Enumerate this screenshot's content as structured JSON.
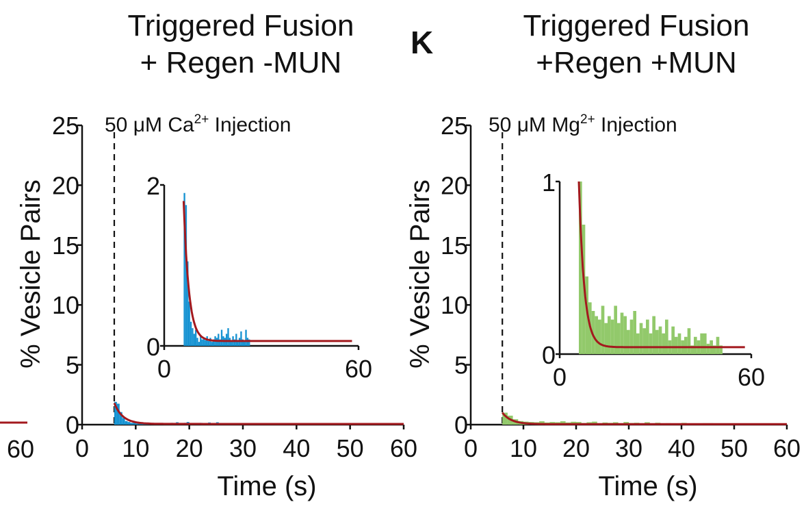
{
  "colors": {
    "blue_bars": "#1793d2",
    "green_bars": "#92c96b",
    "fit_line": "#a3191e",
    "axis": "#111111"
  },
  "fragment": {
    "tick_label": "60"
  },
  "panel_k": {
    "letter": "K"
  },
  "chart_data": [
    {
      "id": "left",
      "type": "bar",
      "title": [
        "Triggered Fusion",
        "+ Regen -MUN"
      ],
      "annotation": {
        "prefix": "50 μM Ca",
        "superscript": "2+",
        "suffix": " Injection"
      },
      "injection_time": 6,
      "xlabel": "Time (s)",
      "ylabel": "% Vesicle Pairs",
      "xlim": [
        0,
        60
      ],
      "ylim": [
        0,
        25
      ],
      "xticks": [
        "0",
        "10",
        "20",
        "30",
        "40",
        "50",
        "60"
      ],
      "yticks": [
        "0",
        "5",
        "10",
        "15",
        "20",
        "25"
      ],
      "bar_color": "#1793d2",
      "bin_width": 0.5,
      "bar_start": 6,
      "values": [
        1.9,
        1.75,
        1.05,
        0.55,
        0.3,
        0.22,
        0.15,
        0.2,
        0.1,
        0.05,
        0.12,
        0.08,
        0.1,
        0.07,
        0.12,
        0.06,
        0.1,
        0.05,
        0.08,
        0.12,
        0.1,
        0.15,
        0.08,
        0.2,
        0.12,
        0.1,
        0.15,
        0.22,
        0.1,
        0.05,
        0.12,
        0.08,
        0.15,
        0.05,
        0.1,
        0.18,
        0.08,
        0.05,
        0.2,
        0.1,
        0.08
      ],
      "fit": {
        "y0": 1.8,
        "tau": 1.6,
        "floor": 0.06
      },
      "inset": {
        "xlim": [
          0,
          60
        ],
        "ylim": [
          0,
          2
        ],
        "xticks": [
          "0",
          "60"
        ],
        "yticks": [
          "0",
          "2"
        ],
        "start_time": 6
      }
    },
    {
      "id": "right",
      "type": "bar",
      "title": [
        "Triggered Fusion",
        "+Regen +MUN"
      ],
      "annotation": {
        "prefix": "50 μM Mg",
        "superscript": "2+",
        "suffix": " Injection"
      },
      "injection_time": 6,
      "xlabel": "Time (s)",
      "ylabel": "% Vesicle Pairs",
      "xlim": [
        0,
        60
      ],
      "ylim": [
        0,
        25
      ],
      "xticks": [
        "0",
        "10",
        "20",
        "30",
        "40",
        "50",
        "60"
      ],
      "yticks": [
        "0",
        "5",
        "10",
        "15",
        "20",
        "25"
      ],
      "bar_color": "#92c96b",
      "bin_width": 1,
      "bar_start": 6,
      "values": [
        1.0,
        0.75,
        0.45,
        0.3,
        0.25,
        0.22,
        0.2,
        0.28,
        0.18,
        0.22,
        0.2,
        0.28,
        0.18,
        0.24,
        0.22,
        0.14,
        0.2,
        0.25,
        0.12,
        0.18,
        0.15,
        0.2,
        0.12,
        0.22,
        0.14,
        0.16,
        0.12,
        0.2,
        0.08,
        0.16,
        0.1,
        0.12,
        0.08,
        0.1,
        0.15,
        0.05,
        0.1,
        0.08,
        0.12,
        0.12,
        0.06,
        0.08,
        0.05,
        0.1,
        0.05
      ],
      "fit": {
        "y0": 1.0,
        "tau": 1.7,
        "floor": 0.04
      },
      "inset": {
        "xlim": [
          0,
          60
        ],
        "ylim": [
          0,
          1
        ],
        "xticks": [
          "0",
          "60"
        ],
        "yticks": [
          "0",
          "1"
        ],
        "start_time": 6
      }
    }
  ]
}
